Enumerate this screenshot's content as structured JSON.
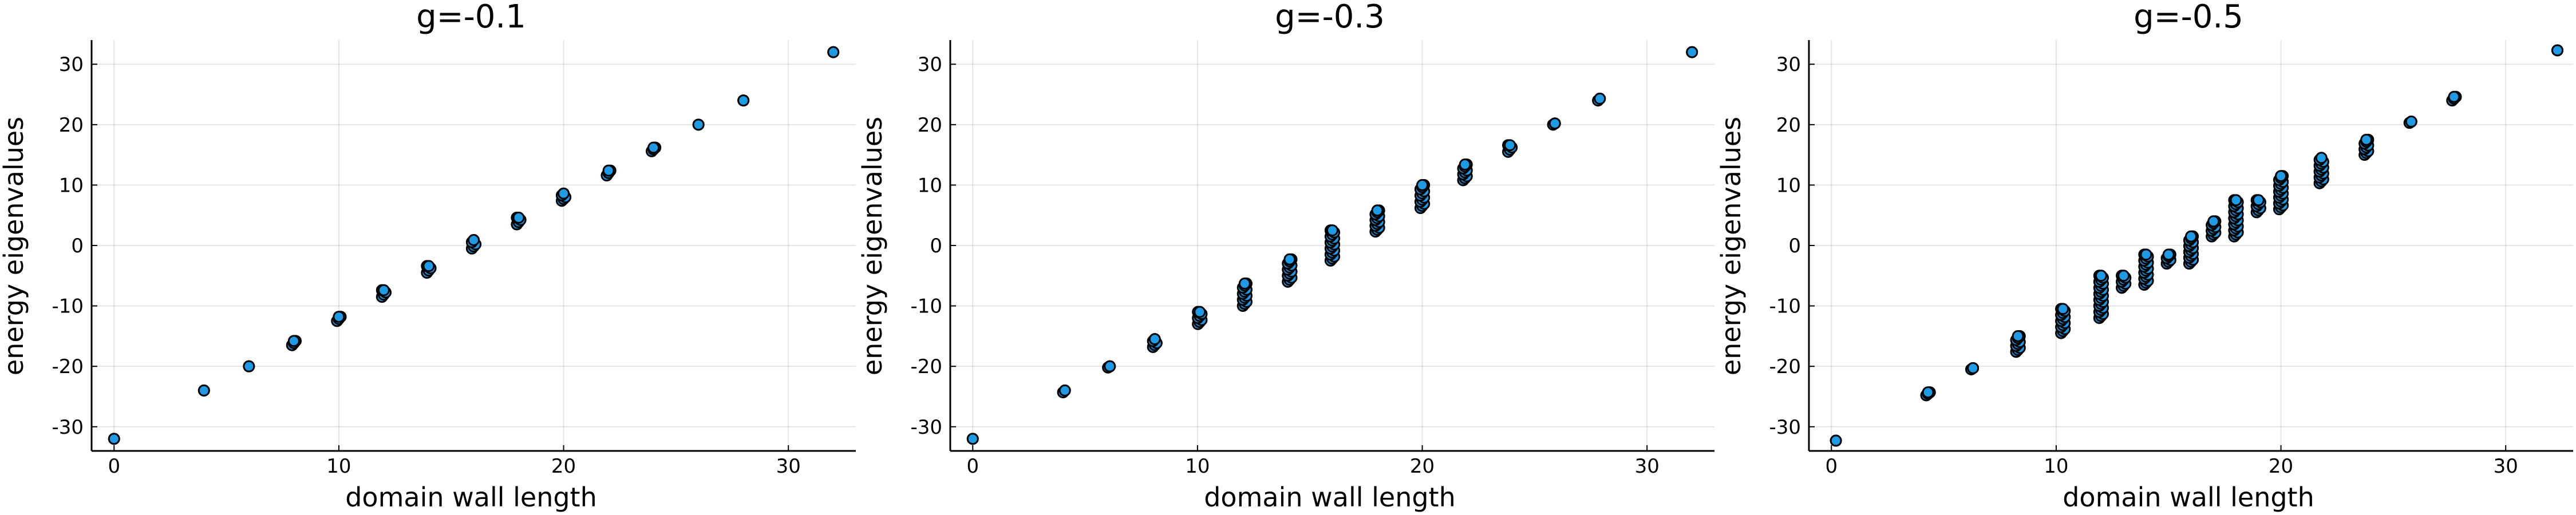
{
  "colors": {
    "marker_fill": "#1f9be6",
    "marker_stroke": "#000000",
    "grid": "#e6e6e6"
  },
  "chart_data": [
    {
      "type": "scatter",
      "title": "g=-0.1",
      "xlabel": "domain wall length",
      "ylabel": "energy eigenvalues",
      "xlim": [
        -1,
        33
      ],
      "ylim": [
        -34,
        34
      ],
      "xticks": [
        0,
        10,
        20,
        30
      ],
      "yticks": [
        -30,
        -20,
        -10,
        0,
        10,
        20,
        30
      ],
      "grid": true,
      "legend": "none",
      "clusters": [
        {
          "x": 0,
          "y_min": -32,
          "y_max": -32
        },
        {
          "x": 4,
          "y_min": -24,
          "y_max": -24
        },
        {
          "x": 6,
          "y_min": -20,
          "y_max": -20
        },
        {
          "x": 8,
          "y_min": -16.5,
          "y_max": -15.8
        },
        {
          "x": 10,
          "y_min": -12.5,
          "y_max": -11.8
        },
        {
          "x": 12,
          "y_min": -8.5,
          "y_max": -7.4
        },
        {
          "x": 14,
          "y_min": -4.5,
          "y_max": -3.4
        },
        {
          "x": 16,
          "y_min": -0.5,
          "y_max": 0.9
        },
        {
          "x": 18,
          "y_min": 3.5,
          "y_max": 4.6
        },
        {
          "x": 20,
          "y_min": 7.4,
          "y_max": 8.6
        },
        {
          "x": 22,
          "y_min": 11.6,
          "y_max": 12.4
        },
        {
          "x": 24,
          "y_min": 15.6,
          "y_max": 16.2
        },
        {
          "x": 26,
          "y_min": 20,
          "y_max": 20
        },
        {
          "x": 28,
          "y_min": 24,
          "y_max": 24
        },
        {
          "x": 32,
          "y_min": 32,
          "y_max": 32
        }
      ]
    },
    {
      "type": "scatter",
      "title": "g=-0.3",
      "xlabel": "domain wall length",
      "ylabel": "energy eigenvalues",
      "xlim": [
        -1,
        33
      ],
      "ylim": [
        -34,
        34
      ],
      "xticks": [
        0,
        10,
        20,
        30
      ],
      "yticks": [
        -30,
        -20,
        -10,
        0,
        10,
        20,
        30
      ],
      "grid": true,
      "legend": "none",
      "clusters": [
        {
          "x": 0,
          "y_min": -32,
          "y_max": -32
        },
        {
          "x": 4.1,
          "y_min": -24.3,
          "y_max": -24
        },
        {
          "x": 6.1,
          "y_min": -20.2,
          "y_max": -20
        },
        {
          "x": 8.1,
          "y_min": -16.8,
          "y_max": -15.5
        },
        {
          "x": 10.1,
          "y_min": -13,
          "y_max": -11
        },
        {
          "x": 12.1,
          "y_min": -10,
          "y_max": -6.3
        },
        {
          "x": 14.1,
          "y_min": -6,
          "y_max": -2.3
        },
        {
          "x": 16,
          "y_min": -2.5,
          "y_max": 2.5
        },
        {
          "x": 18,
          "y_min": 2.3,
          "y_max": 5.8
        },
        {
          "x": 20,
          "y_min": 6.2,
          "y_max": 10
        },
        {
          "x": 21.9,
          "y_min": 10.8,
          "y_max": 13.4
        },
        {
          "x": 23.9,
          "y_min": 15.5,
          "y_max": 16.6
        },
        {
          "x": 25.9,
          "y_min": 20,
          "y_max": 20.2
        },
        {
          "x": 27.9,
          "y_min": 24,
          "y_max": 24.3
        },
        {
          "x": 32,
          "y_min": 32,
          "y_max": 32
        }
      ]
    },
    {
      "type": "scatter",
      "title": "g=-0.5",
      "xlabel": "domain wall length",
      "ylabel": "energy eigenvalues",
      "xlim": [
        -1,
        33
      ],
      "ylim": [
        -34,
        34
      ],
      "xticks": [
        0,
        10,
        20,
        30
      ],
      "yticks": [
        -30,
        -20,
        -10,
        0,
        10,
        20,
        30
      ],
      "grid": true,
      "legend": "none",
      "clusters": [
        {
          "x": 0.2,
          "y_min": -32.3,
          "y_max": -32.3
        },
        {
          "x": 4.3,
          "y_min": -24.8,
          "y_max": -24.3
        },
        {
          "x": 6.3,
          "y_min": -20.5,
          "y_max": -20.3
        },
        {
          "x": 8.3,
          "y_min": -17.6,
          "y_max": -15
        },
        {
          "x": 10.3,
          "y_min": -14.5,
          "y_max": -10.5
        },
        {
          "x": 12,
          "y_min": -12,
          "y_max": -5
        },
        {
          "x": 13,
          "y_min": -7,
          "y_max": -5
        },
        {
          "x": 14,
          "y_min": -6.5,
          "y_max": -1.5
        },
        {
          "x": 15,
          "y_min": -3,
          "y_max": -1.5
        },
        {
          "x": 16,
          "y_min": -3,
          "y_max": 1.5
        },
        {
          "x": 17,
          "y_min": 1.5,
          "y_max": 4
        },
        {
          "x": 18,
          "y_min": 1.5,
          "y_max": 7.5
        },
        {
          "x": 19,
          "y_min": 5.5,
          "y_max": 7.5
        },
        {
          "x": 20,
          "y_min": 6,
          "y_max": 11.5
        },
        {
          "x": 21.8,
          "y_min": 10.3,
          "y_max": 14.5
        },
        {
          "x": 23.8,
          "y_min": 15,
          "y_max": 17.5
        },
        {
          "x": 25.8,
          "y_min": 20.3,
          "y_max": 20.5
        },
        {
          "x": 27.7,
          "y_min": 24,
          "y_max": 24.6
        },
        {
          "x": 32.3,
          "y_min": 32.3,
          "y_max": 32.3
        }
      ]
    }
  ]
}
